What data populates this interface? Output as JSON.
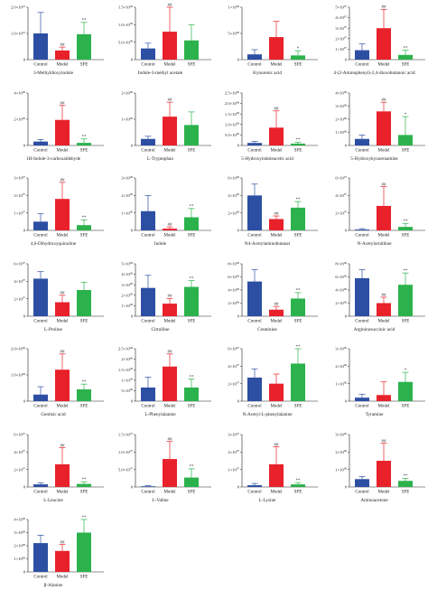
{
  "chart_data": [
    {
      "type": "bar",
      "title": "3-Methyldioxyindole",
      "categories": [
        "Control",
        "Model",
        "SFE"
      ],
      "values": [
        1.0,
        0.35,
        0.97
      ],
      "errors": [
        0.8,
        0.13,
        0.45
      ],
      "ylim": [
        0,
        2
      ],
      "exponent": "10",
      "yticks": [
        {
          "v": 0,
          "t": "0"
        },
        {
          "v": 1,
          "t": "1.0×10"
        },
        {
          "v": 2,
          "t": "2.0×10"
        }
      ],
      "markers": [
        "",
        "##",
        "**"
      ]
    },
    {
      "type": "bar",
      "title": "Indole-3-methyl acetate",
      "categories": [
        "Control",
        "Model",
        "SFE"
      ],
      "values": [
        0.32,
        0.8,
        0.55
      ],
      "errors": [
        0.15,
        0.8,
        0.45
      ],
      "ylim": [
        0,
        1.5
      ],
      "exponent": "06",
      "yticks": [
        {
          "v": 0,
          "t": "0"
        },
        {
          "v": 0.5,
          "t": "5.0×10"
        },
        {
          "v": 1,
          "t": "1.0×10"
        },
        {
          "v": 1.5,
          "t": "1.5×10"
        }
      ],
      "markers": [
        "",
        "##",
        ""
      ]
    },
    {
      "type": "bar",
      "title": "Kynurenic acid",
      "categories": [
        "Control",
        "Model",
        "SFE"
      ],
      "values": [
        1.0,
        4.3,
        0.8
      ],
      "errors": [
        0.9,
        3.0,
        0.9
      ],
      "ylim": [
        0,
        10
      ],
      "exponent": "06",
      "yticks": [
        {
          "v": 0,
          "t": "0"
        },
        {
          "v": 5,
          "t": "5×10"
        },
        {
          "v": 10,
          "t": "1×10"
        }
      ],
      "markers": [
        "",
        "",
        "*"
      ]
    },
    {
      "type": "bar",
      "title": "4-(2-Aminophenyl)-2,4-dioxobutanoic acid",
      "categories": [
        "Control",
        "Model",
        "SFE"
      ],
      "values": [
        0.9,
        3.0,
        0.45
      ],
      "errors": [
        0.6,
        1.8,
        0.45
      ],
      "ylim": [
        0,
        5
      ],
      "exponent": "07",
      "yticks": [
        {
          "v": 0,
          "t": "0"
        },
        {
          "v": 1,
          "t": "1×10"
        },
        {
          "v": 2,
          "t": "2×10"
        },
        {
          "v": 3,
          "t": "3×10"
        },
        {
          "v": 4,
          "t": "4×10"
        },
        {
          "v": 5,
          "t": "5×10"
        }
      ],
      "markers": [
        "",
        "##",
        "**"
      ]
    },
    {
      "type": "bar",
      "title": "1H-Indole-3-carboxaldehyde",
      "categories": [
        "Control",
        "Model",
        "SFE"
      ],
      "values": [
        0.3,
        1.95,
        0.2
      ],
      "errors": [
        0.15,
        1.1,
        0.3
      ],
      "ylim": [
        0,
        4
      ],
      "exponent": "06",
      "yticks": [
        {
          "v": 0,
          "t": "0"
        },
        {
          "v": 2,
          "t": "2×10"
        },
        {
          "v": 4,
          "t": "4×10"
        }
      ],
      "markers": [
        "",
        "##",
        "**"
      ]
    },
    {
      "type": "bar",
      "title": "L-Tryptophan",
      "categories": [
        "Control",
        "Model",
        "SFE"
      ],
      "values": [
        0.25,
        1.1,
        0.78
      ],
      "errors": [
        0.1,
        0.55,
        0.5
      ],
      "ylim": [
        0,
        2
      ],
      "exponent": "06",
      "yticks": [
        {
          "v": 0,
          "t": "0"
        },
        {
          "v": 1,
          "t": "1×10"
        },
        {
          "v": 2,
          "t": "2×10"
        }
      ],
      "markers": [
        "",
        "##",
        ""
      ]
    },
    {
      "type": "bar",
      "title": "5-Hydroxyindoleacetic acid",
      "categories": [
        "Control",
        "Model",
        "SFE"
      ],
      "values": [
        0.12,
        0.85,
        0.09
      ],
      "errors": [
        0.07,
        0.8,
        0.07
      ],
      "ylim": [
        0,
        2.5
      ],
      "exponent": "06",
      "yticks": [
        {
          "v": 0,
          "t": "0"
        },
        {
          "v": 0.5,
          "t": "5.0×10"
        },
        {
          "v": 1,
          "t": "1.0×10"
        },
        {
          "v": 1.5,
          "t": "1.5×10"
        },
        {
          "v": 2,
          "t": "2.0×10"
        },
        {
          "v": 2.5,
          "t": "2.5×10"
        }
      ],
      "markers": [
        "",
        "##",
        "**"
      ]
    },
    {
      "type": "bar",
      "title": "5-Hydroxykynurenamine",
      "categories": [
        "Control",
        "Model",
        "SFE"
      ],
      "values": [
        0.5,
        2.6,
        0.8
      ],
      "errors": [
        0.3,
        0.7,
        1.4
      ],
      "ylim": [
        0,
        4
      ],
      "exponent": "06",
      "yticks": [
        {
          "v": 0,
          "t": "0"
        },
        {
          "v": 1,
          "t": "1×10"
        },
        {
          "v": 2,
          "t": "2×10"
        },
        {
          "v": 3,
          "t": "3×10"
        },
        {
          "v": 4,
          "t": "4×10"
        }
      ],
      "markers": [
        "",
        "##",
        "*"
      ]
    },
    {
      "type": "bar",
      "title": "4,6-Dihydroxyquinoline",
      "categories": [
        "Control",
        "Model",
        "SFE"
      ],
      "values": [
        0.5,
        1.8,
        0.3
      ],
      "errors": [
        0.45,
        0.95,
        0.3
      ],
      "ylim": [
        0,
        3
      ],
      "exponent": "07",
      "yticks": [
        {
          "v": 0,
          "t": "0"
        },
        {
          "v": 1,
          "t": "1×10"
        },
        {
          "v": 2,
          "t": "2×10"
        },
        {
          "v": 3,
          "t": "3×10"
        }
      ],
      "markers": [
        "",
        "##",
        "**"
      ]
    },
    {
      "type": "bar",
      "title": "Indole",
      "categories": [
        "Control",
        "Model",
        "SFE"
      ],
      "values": [
        1.1,
        0.1,
        0.75
      ],
      "errors": [
        0.9,
        0.1,
        0.5
      ],
      "ylim": [
        0,
        3
      ],
      "exponent": "06",
      "yticks": [
        {
          "v": 0,
          "t": "0"
        },
        {
          "v": 1,
          "t": "1×10"
        },
        {
          "v": 2,
          "t": "2×10"
        },
        {
          "v": 3,
          "t": "3×10"
        }
      ],
      "markers": [
        "",
        "##",
        "**"
      ]
    },
    {
      "type": "bar",
      "title": "N4-Acetylaminobutanal",
      "categories": [
        "Control",
        "Model",
        "SFE"
      ],
      "values": [
        4.0,
        1.3,
        2.6
      ],
      "errors": [
        1.3,
        0.35,
        0.7
      ],
      "ylim": [
        0,
        6
      ],
      "exponent": "06",
      "yticks": [
        {
          "v": 0,
          "t": "0"
        },
        {
          "v": 2,
          "t": "2×10"
        },
        {
          "v": 4,
          "t": "4×10"
        },
        {
          "v": 6,
          "t": "6×10"
        }
      ],
      "markers": [
        "",
        "##",
        "**"
      ]
    },
    {
      "type": "bar",
      "title": "N-Acetylornithine",
      "categories": [
        "Control",
        "Model",
        "SFE"
      ],
      "values": [
        0.1,
        2.8,
        0.4
      ],
      "errors": [
        0.1,
        2.2,
        0.4
      ],
      "ylim": [
        0,
        6
      ],
      "exponent": "07",
      "yticks": [
        {
          "v": 0,
          "t": "0"
        },
        {
          "v": 2,
          "t": "2×10"
        },
        {
          "v": 4,
          "t": "4×10"
        },
        {
          "v": 6,
          "t": "6×10"
        }
      ],
      "markers": [
        "",
        "##",
        "**"
      ]
    },
    {
      "type": "bar",
      "title": "L-Proline",
      "categories": [
        "Control",
        "Model",
        "SFE"
      ],
      "values": [
        4.3,
        1.6,
        3.0
      ],
      "errors": [
        0.8,
        0.8,
        0.9
      ],
      "ylim": [
        0,
        6
      ],
      "exponent": "07",
      "yticks": [
        {
          "v": 0,
          "t": "0"
        },
        {
          "v": 2,
          "t": "2×10"
        },
        {
          "v": 4,
          "t": "4×10"
        },
        {
          "v": 6,
          "t": "6×10"
        }
      ],
      "markers": [
        "",
        "##",
        ""
      ]
    },
    {
      "type": "bar",
      "title": "Citrulline",
      "categories": [
        "Control",
        "Model",
        "SFE"
      ],
      "values": [
        2.7,
        1.2,
        2.8
      ],
      "errors": [
        1.2,
        0.5,
        0.6
      ],
      "ylim": [
        0,
        5
      ],
      "exponent": "06",
      "yticks": [
        {
          "v": 0,
          "t": "0"
        },
        {
          "v": 1,
          "t": "1×10"
        },
        {
          "v": 2,
          "t": "2×10"
        },
        {
          "v": 3,
          "t": "3×10"
        },
        {
          "v": 4,
          "t": "4×10"
        },
        {
          "v": 5,
          "t": "5×10"
        }
      ],
      "markers": [
        "",
        "##",
        "**"
      ]
    },
    {
      "type": "bar",
      "title": "Creatinine",
      "categories": [
        "Control",
        "Model",
        "SFE"
      ],
      "values": [
        5.3,
        1.0,
        2.7
      ],
      "errors": [
        1.8,
        0.5,
        0.9
      ],
      "ylim": [
        0,
        8
      ],
      "exponent": "06",
      "yticks": [
        {
          "v": 0,
          "t": "0"
        },
        {
          "v": 2,
          "t": "2×10"
        },
        {
          "v": 4,
          "t": "4×10"
        },
        {
          "v": 6,
          "t": "6×10"
        },
        {
          "v": 8,
          "t": "8×10"
        }
      ],
      "markers": [
        "",
        "##",
        "**"
      ]
    },
    {
      "type": "bar",
      "title": "Argininosuccinic acid",
      "categories": [
        "Control",
        "Model",
        "SFE"
      ],
      "values": [
        5.8,
        2.0,
        4.8
      ],
      "errors": [
        1.3,
        0.9,
        1.8
      ],
      "ylim": [
        0,
        8
      ],
      "exponent": "06",
      "yticks": [
        {
          "v": 0,
          "t": "0"
        },
        {
          "v": 2,
          "t": "2×10"
        },
        {
          "v": 4,
          "t": "4×10"
        },
        {
          "v": 6,
          "t": "6×10"
        },
        {
          "v": 8,
          "t": "8×10"
        }
      ],
      "markers": [
        "",
        "##",
        "**"
      ]
    },
    {
      "type": "bar",
      "title": "Gentisic acid",
      "categories": [
        "Control",
        "Model",
        "SFE"
      ],
      "values": [
        0.25,
        1.2,
        0.45
      ],
      "errors": [
        0.3,
        0.6,
        0.2
      ],
      "ylim": [
        0,
        2
      ],
      "exponent": "06",
      "yticks": [
        {
          "v": 0,
          "t": "0"
        },
        {
          "v": 1,
          "t": "1.0×10"
        },
        {
          "v": 2,
          "t": "2.0×10"
        }
      ],
      "markers": [
        "",
        "##",
        "**"
      ]
    },
    {
      "type": "bar",
      "title": "L-Phenylalanine",
      "categories": [
        "Control",
        "Model",
        "SFE"
      ],
      "values": [
        0.65,
        1.65,
        0.65
      ],
      "errors": [
        0.5,
        0.6,
        0.4
      ],
      "ylim": [
        0,
        2.5
      ],
      "exponent": "06",
      "yticks": [
        {
          "v": 0,
          "t": "0"
        },
        {
          "v": 0.5,
          "t": "5×10"
        },
        {
          "v": 1,
          "t": "1×10"
        },
        {
          "v": 1.5,
          "t": "1.5×10"
        },
        {
          "v": 2,
          "t": "2×10"
        },
        {
          "v": 2.5,
          "t": "2.5×10"
        }
      ],
      "markers": [
        "",
        "##",
        "**"
      ]
    },
    {
      "type": "bar",
      "title": "N-Acetyl-L-phenylalanine",
      "categories": [
        "Control",
        "Model",
        "SFE"
      ],
      "values": [
        2.7,
        2.0,
        4.3
      ],
      "errors": [
        1.0,
        1.1,
        1.7
      ],
      "ylim": [
        0,
        6
      ],
      "exponent": "07",
      "yticks": [
        {
          "v": 0,
          "t": "0"
        },
        {
          "v": 2,
          "t": "2×10"
        },
        {
          "v": 4,
          "t": "4×10"
        },
        {
          "v": 6,
          "t": "6×10"
        }
      ],
      "markers": [
        "",
        "",
        "**"
      ]
    },
    {
      "type": "bar",
      "title": "Tyramine",
      "categories": [
        "Control",
        "Model",
        "SFE"
      ],
      "values": [
        0.2,
        0.35,
        1.1
      ],
      "errors": [
        0.2,
        0.75,
        0.55
      ],
      "ylim": [
        0,
        3
      ],
      "exponent": "06",
      "yticks": [
        {
          "v": 0,
          "t": "0"
        },
        {
          "v": 1,
          "t": "1×10"
        },
        {
          "v": 2,
          "t": "2×10"
        },
        {
          "v": 3,
          "t": "3×10"
        }
      ],
      "markers": [
        "",
        "",
        "*"
      ]
    },
    {
      "type": "bar",
      "title": "L-Leucine",
      "categories": [
        "Control",
        "Model",
        "SFE"
      ],
      "values": [
        0.3,
        2.6,
        0.35
      ],
      "errors": [
        0.15,
        1.9,
        0.25
      ],
      "ylim": [
        0,
        6
      ],
      "exponent": "07",
      "yticks": [
        {
          "v": 0,
          "t": "0"
        },
        {
          "v": 2,
          "t": "2×10"
        },
        {
          "v": 4,
          "t": "4×10"
        },
        {
          "v": 6,
          "t": "6×10"
        }
      ],
      "markers": [
        "",
        "##",
        "**"
      ]
    },
    {
      "type": "bar",
      "title": "L-Valine",
      "categories": [
        "Control",
        "Model",
        "SFE"
      ],
      "values": [
        0.02,
        0.8,
        0.27
      ],
      "errors": [
        0.02,
        0.5,
        0.25
      ],
      "ylim": [
        0,
        1.5
      ],
      "exponent": "07",
      "yticks": [
        {
          "v": 0,
          "t": "0"
        },
        {
          "v": 0.5,
          "t": "5.0×10"
        },
        {
          "v": 1,
          "t": "1.0×10"
        },
        {
          "v": 1.5,
          "t": "1.5×10"
        }
      ],
      "markers": [
        "",
        "##",
        "**"
      ]
    },
    {
      "type": "bar",
      "title": "L-Lysine",
      "categories": [
        "Control",
        "Model",
        "SFE"
      ],
      "values": [
        0.1,
        1.3,
        0.15
      ],
      "errors": [
        0.1,
        1.0,
        0.1
      ],
      "ylim": [
        0,
        3
      ],
      "exponent": "07",
      "yticks": [
        {
          "v": 0,
          "t": "0"
        },
        {
          "v": 1,
          "t": "1×10"
        },
        {
          "v": 2,
          "t": "2×10"
        },
        {
          "v": 3,
          "t": "3×10"
        }
      ],
      "markers": [
        "",
        "##",
        "**"
      ]
    },
    {
      "type": "bar",
      "title": "Aminoacetone",
      "categories": [
        "Control",
        "Model",
        "SFE"
      ],
      "values": [
        0.45,
        1.5,
        0.35
      ],
      "errors": [
        0.15,
        1.0,
        0.15
      ],
      "ylim": [
        0,
        3
      ],
      "exponent": "06",
      "yticks": [
        {
          "v": 0,
          "t": "0"
        },
        {
          "v": 1,
          "t": "1×10"
        },
        {
          "v": 2,
          "t": "2×10"
        },
        {
          "v": 3,
          "t": "3×10"
        }
      ],
      "markers": [
        "",
        "##",
        "**"
      ]
    },
    {
      "type": "bar",
      "title": "β-Alanine",
      "categories": [
        "Control",
        "Model",
        "SFE"
      ],
      "values": [
        2.2,
        1.6,
        3.0
      ],
      "errors": [
        0.6,
        0.5,
        1.0
      ],
      "ylim": [
        0,
        4
      ],
      "exponent": "06",
      "yticks": [
        {
          "v": 0,
          "t": "0"
        },
        {
          "v": 1,
          "t": "1×10"
        },
        {
          "v": 2,
          "t": "2×10"
        },
        {
          "v": 3,
          "t": "3×10"
        },
        {
          "v": 4,
          "t": "4×10"
        }
      ],
      "markers": [
        "",
        "##",
        "**"
      ]
    }
  ],
  "colors": {
    "Control": "#2d4fa3",
    "Model": "#e8212b",
    "SFE": "#2bb24c"
  }
}
